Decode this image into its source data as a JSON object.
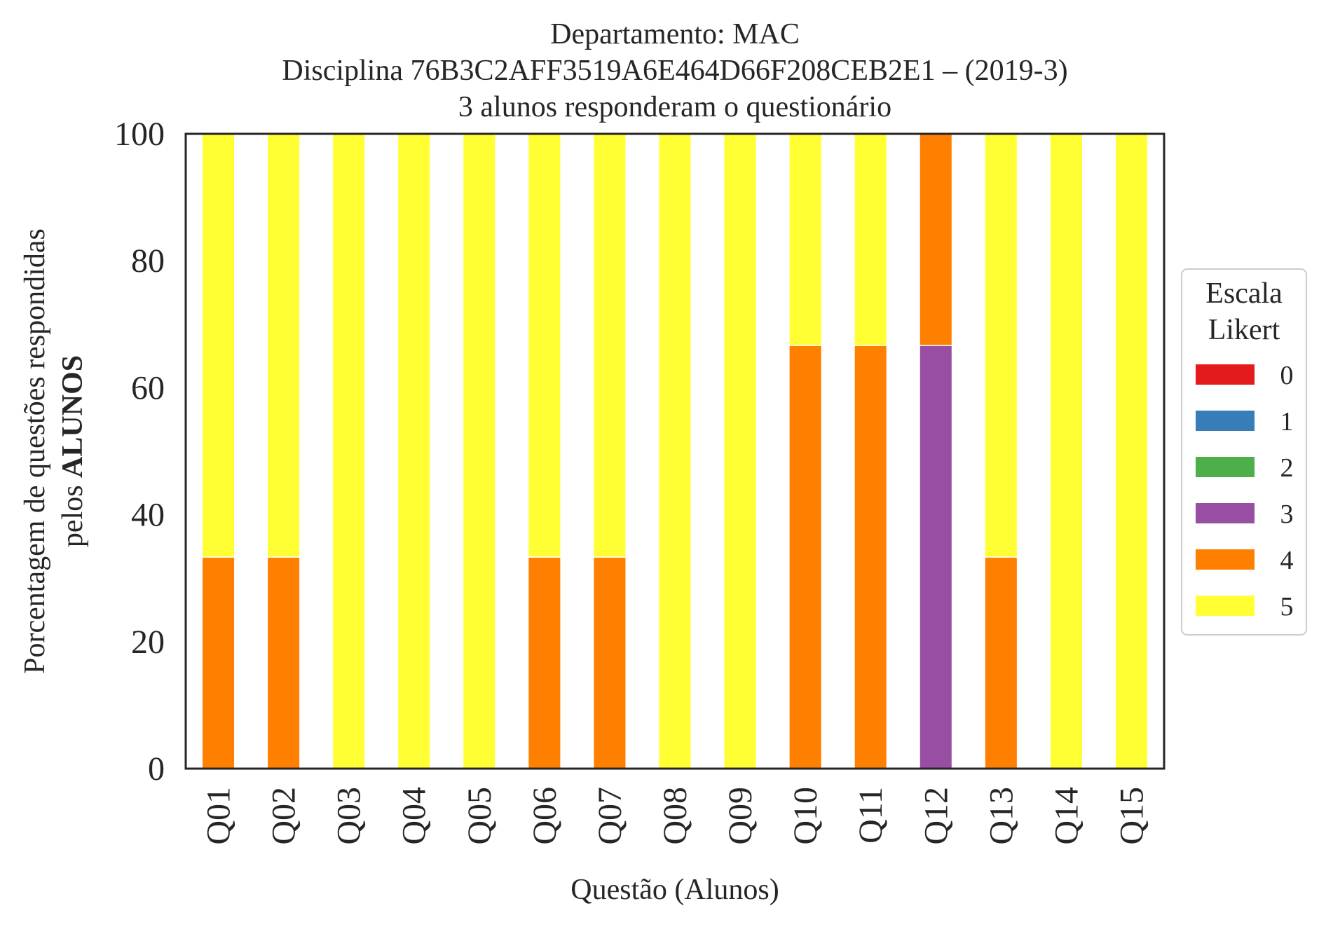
{
  "chart_data": {
    "type": "bar",
    "stacked": true,
    "title_lines": [
      "Departamento: MAC",
      "Disciplina 76B3C2AFF3519A6E464D66F208CEB2E1 – (2019-3)",
      "3 alunos responderam o questionário"
    ],
    "xlabel": "Questão (Alunos)",
    "ylabel_line1": "Porcentagem de questões respondidas",
    "ylabel_line2_prefix": "pelos",
    "ylabel_line2_bold": "ALUNOS",
    "ylim": [
      0,
      100
    ],
    "yticks": [
      "0",
      "20",
      "40",
      "60",
      "80",
      "100"
    ],
    "grid": false,
    "legend_position": "right",
    "legend_title_lines": [
      "Escala",
      "Likert"
    ],
    "categories": [
      "Q01",
      "Q02",
      "Q03",
      "Q04",
      "Q05",
      "Q06",
      "Q07",
      "Q08",
      "Q09",
      "Q10",
      "Q11",
      "Q12",
      "Q13",
      "Q14",
      "Q15"
    ],
    "series": [
      {
        "name": "0",
        "color": "#e41a1c",
        "values": [
          0,
          0,
          0,
          0,
          0,
          0,
          0,
          0,
          0,
          0,
          0,
          0,
          0,
          0,
          0
        ]
      },
      {
        "name": "1",
        "color": "#377eb8",
        "values": [
          0,
          0,
          0,
          0,
          0,
          0,
          0,
          0,
          0,
          0,
          0,
          0,
          0,
          0,
          0
        ]
      },
      {
        "name": "2",
        "color": "#4daf4a",
        "values": [
          0,
          0,
          0,
          0,
          0,
          0,
          0,
          0,
          0,
          0,
          0,
          0,
          0,
          0,
          0
        ]
      },
      {
        "name": "3",
        "color": "#984ea3",
        "values": [
          0,
          0,
          0,
          0,
          0,
          0,
          0,
          0,
          0,
          0,
          0,
          66.67,
          0,
          0,
          0
        ]
      },
      {
        "name": "4",
        "color": "#ff7f00",
        "values": [
          33.33,
          33.33,
          0,
          0,
          0,
          33.33,
          33.33,
          0,
          0,
          66.67,
          66.67,
          33.33,
          33.33,
          0,
          0
        ]
      },
      {
        "name": "5",
        "color": "#ffff33",
        "values": [
          66.67,
          66.67,
          100,
          100,
          100,
          66.67,
          66.67,
          100,
          100,
          33.33,
          33.33,
          0,
          66.67,
          100,
          100
        ]
      }
    ]
  }
}
